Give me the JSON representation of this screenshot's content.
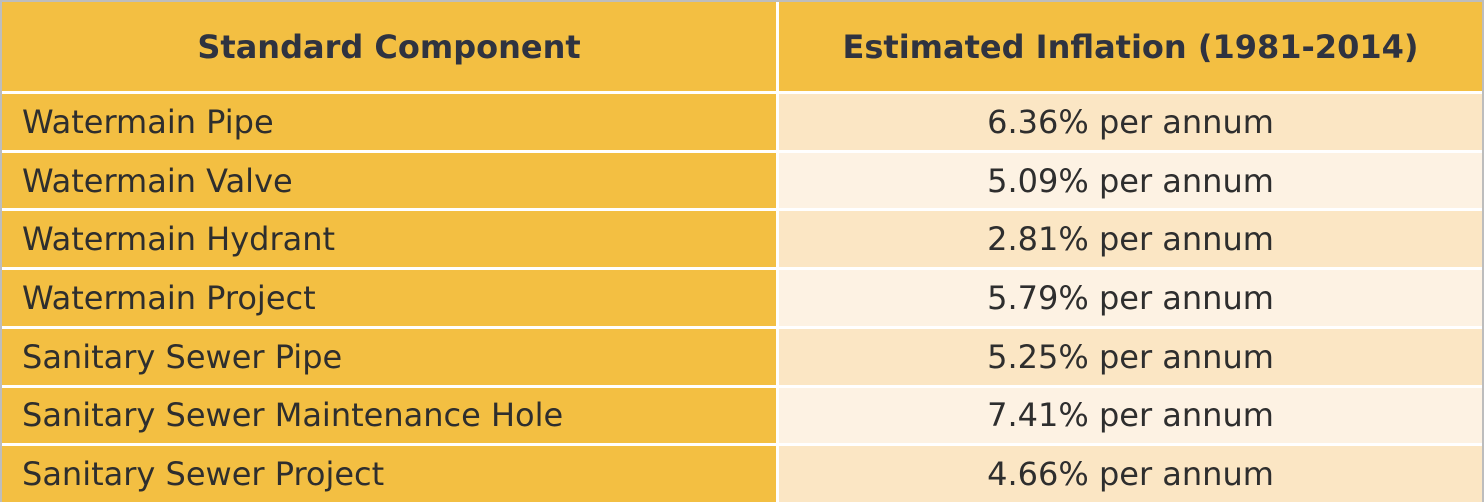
{
  "table": {
    "header": [
      "Standard Component",
      "Estimated Inflation (1981-2014)"
    ],
    "rows": [
      [
        "Watermain Pipe",
        "6.36% per annum"
      ],
      [
        "Watermain Valve",
        "5.09% per annum"
      ],
      [
        "Watermain Hydrant",
        "2.81% per annum"
      ],
      [
        "Watermain Project",
        "5.79% per annum"
      ],
      [
        "Sanitary Sewer Pipe",
        "5.25% per annum"
      ],
      [
        "Sanitary Sewer Maintenance Hole",
        "7.41% per annum"
      ],
      [
        "Sanitary Sewer Project",
        "4.66% per annum"
      ]
    ]
  }
}
